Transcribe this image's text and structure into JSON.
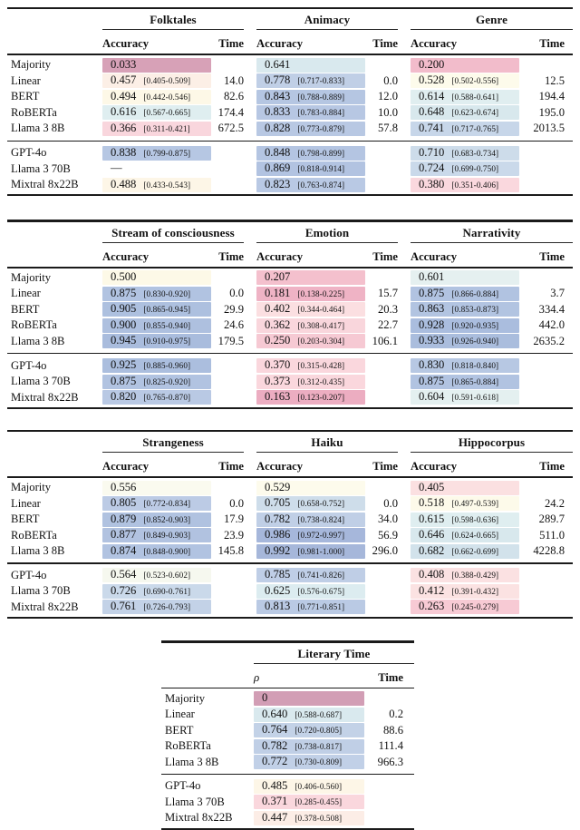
{
  "colors": {
    "rule": "#1a1a1a",
    "ink": "#111111",
    "colormap_anchors": [
      [
        0.0,
        "#d29eb5"
      ],
      [
        0.17,
        "#edaec1"
      ],
      [
        0.22,
        "#f6c6d1"
      ],
      [
        0.3,
        "#f7cdd6"
      ],
      [
        0.38,
        "#fad8de"
      ],
      [
        0.44,
        "#fcebe6"
      ],
      [
        0.5,
        "#fdf9e7"
      ],
      [
        0.55,
        "#fdfcef"
      ],
      [
        0.58,
        "#eef4f0"
      ],
      [
        0.62,
        "#ddedf0"
      ],
      [
        0.67,
        "#d4e4eb"
      ],
      [
        0.72,
        "#cbdaea"
      ],
      [
        0.78,
        "#c0cfe6"
      ],
      [
        0.85,
        "#b4c5e2"
      ],
      [
        0.92,
        "#abbede"
      ],
      [
        1.0,
        "#a5b6da"
      ]
    ]
  },
  "tables": [
    {
      "name": "folktales-animacy-genre",
      "groups": [
        {
          "title": "Folktales",
          "metric_label": "Accuracy",
          "time_label": "Time"
        },
        {
          "title": "Animacy",
          "metric_label": "Accuracy",
          "time_label": "Time"
        },
        {
          "title": "Genre",
          "metric_label": "Accuracy",
          "time_label": "Time"
        }
      ],
      "classical_rows": [
        {
          "label": "Majority",
          "cells": [
            {
              "value": "0.033"
            },
            {
              "value": "0.641"
            },
            {
              "value": "0.200"
            }
          ]
        },
        {
          "label": "Linear",
          "cells": [
            {
              "value": "0.457",
              "ci": "[0.405-0.509]",
              "time": "14.0"
            },
            {
              "value": "0.778",
              "ci": "[0.717-0.833]",
              "time": "0.0"
            },
            {
              "value": "0.528",
              "ci": "[0.502-0.556]",
              "time": "12.5"
            }
          ]
        },
        {
          "label": "BERT",
          "cells": [
            {
              "value": "0.494",
              "ci": "[0.442-0.546]",
              "time": "82.6"
            },
            {
              "value": "0.843",
              "ci": "[0.788-0.889]",
              "time": "12.0"
            },
            {
              "value": "0.614",
              "ci": "[0.588-0.641]",
              "time": "194.4"
            }
          ]
        },
        {
          "label": "RoBERTa",
          "cells": [
            {
              "value": "0.616",
              "ci": "[0.567-0.665]",
              "time": "174.4"
            },
            {
              "value": "0.833",
              "ci": "[0.783-0.884]",
              "time": "10.0"
            },
            {
              "value": "0.648",
              "ci": "[0.623-0.674]",
              "time": "195.0"
            }
          ]
        },
        {
          "label": "Llama 3 8B",
          "cells": [
            {
              "value": "0.366",
              "ci": "[0.311-0.421]",
              "time": "672.5"
            },
            {
              "value": "0.828",
              "ci": "[0.773-0.879]",
              "time": "57.8"
            },
            {
              "value": "0.741",
              "ci": "[0.717-0.765]",
              "time": "2013.5"
            }
          ]
        }
      ],
      "llm_rows": [
        {
          "label": "GPT-4o",
          "cells": [
            {
              "value": "0.838",
              "ci": "[0.799-0.875]"
            },
            {
              "value": "0.848",
              "ci": "[0.798-0.899]"
            },
            {
              "value": "0.710",
              "ci": "[0.683-0.734]"
            }
          ]
        },
        {
          "label": "Llama 3 70B",
          "cells": [
            {
              "value": "—",
              "no_color": true
            },
            {
              "value": "0.869",
              "ci": "[0.818-0.914]"
            },
            {
              "value": "0.724",
              "ci": "[0.699-0.750]"
            }
          ]
        },
        {
          "label": "Mixtral 8x22B",
          "cells": [
            {
              "value": "0.488",
              "ci": "[0.433-0.543]"
            },
            {
              "value": "0.823",
              "ci": "[0.763-0.874]"
            },
            {
              "value": "0.380",
              "ci": "[0.351-0.406]"
            }
          ]
        }
      ]
    },
    {
      "name": "stream-emotion-narrativity",
      "groups": [
        {
          "title": "Stream of consciousness",
          "metric_label": "Accuracy",
          "time_label": "Time"
        },
        {
          "title": "Emotion",
          "metric_label": "Accuracy",
          "time_label": "Time"
        },
        {
          "title": "Narrativity",
          "metric_label": "Accuracy",
          "time_label": "Time"
        }
      ],
      "classical_rows": [
        {
          "label": "Majority",
          "cells": [
            {
              "value": "0.500"
            },
            {
              "value": "0.207"
            },
            {
              "value": "0.601"
            }
          ]
        },
        {
          "label": "Linear",
          "cells": [
            {
              "value": "0.875",
              "ci": "[0.830-0.920]",
              "time": "0.0"
            },
            {
              "value": "0.181",
              "ci": "[0.138-0.225]",
              "time": "15.7"
            },
            {
              "value": "0.875",
              "ci": "[0.866-0.884]",
              "time": "3.7"
            }
          ]
        },
        {
          "label": "BERT",
          "cells": [
            {
              "value": "0.905",
              "ci": "[0.865-0.945]",
              "time": "29.9"
            },
            {
              "value": "0.402",
              "ci": "[0.344-0.464]",
              "time": "20.3"
            },
            {
              "value": "0.863",
              "ci": "[0.853-0.873]",
              "time": "334.4"
            }
          ]
        },
        {
          "label": "RoBERTa",
          "cells": [
            {
              "value": "0.900",
              "ci": "[0.855-0.940]",
              "time": "24.6"
            },
            {
              "value": "0.362",
              "ci": "[0.308-0.417]",
              "time": "22.7"
            },
            {
              "value": "0.928",
              "ci": "[0.920-0.935]",
              "time": "442.0"
            }
          ]
        },
        {
          "label": "Llama 3 8B",
          "cells": [
            {
              "value": "0.945",
              "ci": "[0.910-0.975]",
              "time": "179.5"
            },
            {
              "value": "0.250",
              "ci": "[0.203-0.304]",
              "time": "106.1"
            },
            {
              "value": "0.933",
              "ci": "[0.926-0.940]",
              "time": "2635.2"
            }
          ]
        }
      ],
      "llm_rows": [
        {
          "label": "GPT-4o",
          "cells": [
            {
              "value": "0.925",
              "ci": "[0.885-0.960]"
            },
            {
              "value": "0.370",
              "ci": "[0.315-0.428]"
            },
            {
              "value": "0.830",
              "ci": "[0.818-0.840]"
            }
          ]
        },
        {
          "label": "Llama 3 70B",
          "cells": [
            {
              "value": "0.875",
              "ci": "[0.825-0.920]"
            },
            {
              "value": "0.373",
              "ci": "[0.312-0.435]"
            },
            {
              "value": "0.875",
              "ci": "[0.865-0.884]"
            }
          ]
        },
        {
          "label": "Mixtral 8x22B",
          "cells": [
            {
              "value": "0.820",
              "ci": "[0.765-0.870]"
            },
            {
              "value": "0.163",
              "ci": "[0.123-0.207]"
            },
            {
              "value": "0.604",
              "ci": "[0.591-0.618]"
            }
          ]
        }
      ]
    },
    {
      "name": "strangeness-haiku-hippocorpus",
      "groups": [
        {
          "title": "Strangeness",
          "metric_label": "Accuracy",
          "time_label": "Time"
        },
        {
          "title": "Haiku",
          "metric_label": "Accuracy",
          "time_label": "Time"
        },
        {
          "title": "Hippocorpus",
          "metric_label": "Accuracy",
          "time_label": "Time"
        }
      ],
      "classical_rows": [
        {
          "label": "Majority",
          "cells": [
            {
              "value": "0.556"
            },
            {
              "value": "0.529"
            },
            {
              "value": "0.405"
            }
          ]
        },
        {
          "label": "Linear",
          "cells": [
            {
              "value": "0.805",
              "ci": "[0.772-0.834]",
              "time": "0.0"
            },
            {
              "value": "0.705",
              "ci": "[0.658-0.752]",
              "time": "0.0"
            },
            {
              "value": "0.518",
              "ci": "[0.497-0.539]",
              "time": "24.2"
            }
          ]
        },
        {
          "label": "BERT",
          "cells": [
            {
              "value": "0.879",
              "ci": "[0.852-0.903]",
              "time": "17.9"
            },
            {
              "value": "0.782",
              "ci": "[0.738-0.824]",
              "time": "34.0"
            },
            {
              "value": "0.615",
              "ci": "[0.598-0.636]",
              "time": "289.7"
            }
          ]
        },
        {
          "label": "RoBERTa",
          "cells": [
            {
              "value": "0.877",
              "ci": "[0.849-0.903]",
              "time": "23.9"
            },
            {
              "value": "0.986",
              "ci": "[0.972-0.997]",
              "time": "56.9"
            },
            {
              "value": "0.646",
              "ci": "[0.624-0.665]",
              "time": "511.0"
            }
          ]
        },
        {
          "label": "Llama 3 8B",
          "cells": [
            {
              "value": "0.874",
              "ci": "[0.848-0.900]",
              "time": "145.8"
            },
            {
              "value": "0.992",
              "ci": "[0.981-1.000]",
              "time": "296.0"
            },
            {
              "value": "0.682",
              "ci": "[0.662-0.699]",
              "time": "4228.8"
            }
          ]
        }
      ],
      "llm_rows": [
        {
          "label": "GPT-4o",
          "cells": [
            {
              "value": "0.564",
              "ci": "[0.523-0.602]"
            },
            {
              "value": "0.785",
              "ci": "[0.741-0.826]"
            },
            {
              "value": "0.408",
              "ci": "[0.388-0.429]"
            }
          ]
        },
        {
          "label": "Llama 3 70B",
          "cells": [
            {
              "value": "0.726",
              "ci": "[0.690-0.761]"
            },
            {
              "value": "0.625",
              "ci": "[0.576-0.675]"
            },
            {
              "value": "0.412",
              "ci": "[0.391-0.432]"
            }
          ]
        },
        {
          "label": "Mixtral 8x22B",
          "cells": [
            {
              "value": "0.761",
              "ci": "[0.726-0.793]"
            },
            {
              "value": "0.813",
              "ci": "[0.771-0.851]"
            },
            {
              "value": "0.263",
              "ci": "[0.245-0.279]"
            }
          ]
        }
      ]
    },
    {
      "name": "literary-time",
      "narrow": true,
      "groups": [
        {
          "title": "Literary Time",
          "metric_label": "ρ",
          "metric_italic": true,
          "time_label": "Time"
        }
      ],
      "classical_rows": [
        {
          "label": "Majority",
          "cells": [
            {
              "value": "0"
            }
          ]
        },
        {
          "label": "Linear",
          "cells": [
            {
              "value": "0.640",
              "ci": "[0.588-0.687]",
              "time": "0.2"
            }
          ]
        },
        {
          "label": "BERT",
          "cells": [
            {
              "value": "0.764",
              "ci": "[0.720-0.805]",
              "time": "88.6"
            }
          ]
        },
        {
          "label": "RoBERTa",
          "cells": [
            {
              "value": "0.782",
              "ci": "[0.738-0.817]",
              "time": "111.4"
            }
          ]
        },
        {
          "label": "Llama 3 8B",
          "cells": [
            {
              "value": "0.772",
              "ci": "[0.730-0.809]",
              "time": "966.3"
            }
          ]
        }
      ],
      "llm_rows": [
        {
          "label": "GPT-4o",
          "cells": [
            {
              "value": "0.485",
              "ci": "[0.406-0.560]"
            }
          ]
        },
        {
          "label": "Llama 3 70B",
          "cells": [
            {
              "value": "0.371",
              "ci": "[0.285-0.455]"
            }
          ]
        },
        {
          "label": "Mixtral 8x22B",
          "cells": [
            {
              "value": "0.447",
              "ci": "[0.378-0.508]"
            }
          ]
        }
      ]
    }
  ]
}
